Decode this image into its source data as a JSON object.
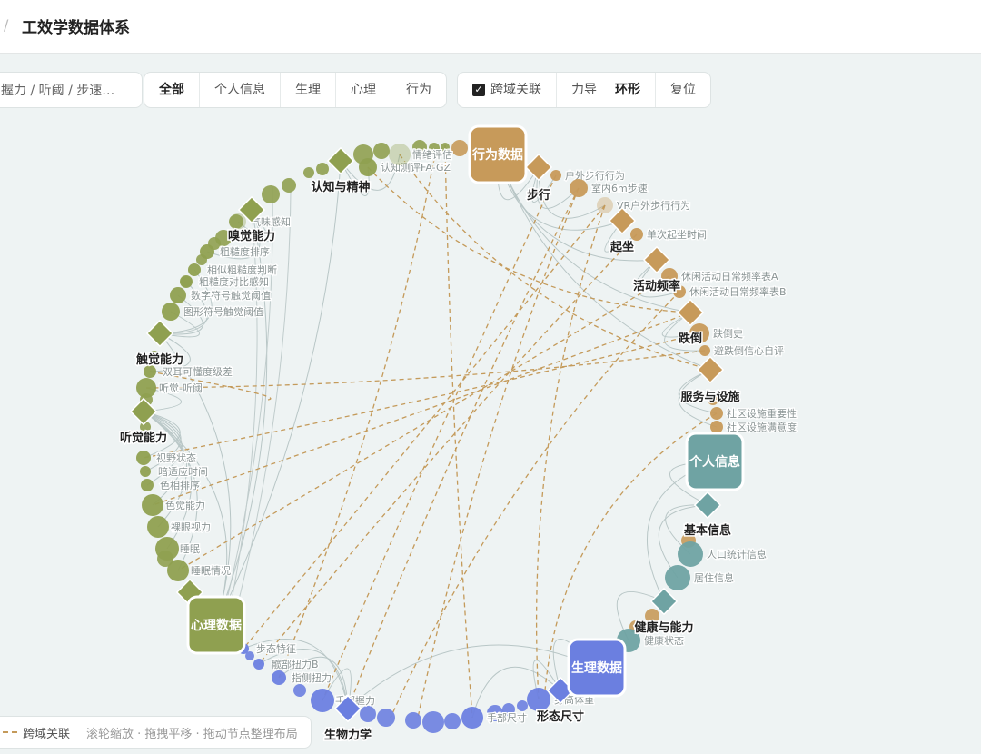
{
  "header": {
    "title": "工效学数据体系"
  },
  "search": {
    "placeholder": "握力 / 听阈 / 步速…"
  },
  "filters": [
    "全部",
    "个人信息",
    "生理",
    "心理",
    "行为"
  ],
  "controls": {
    "cross_link": "跨域关联",
    "layouts": [
      "力导",
      "环形"
    ],
    "reset": "复位"
  },
  "legend": {
    "cross_link": "跨域关联",
    "hint": "滚轮缩放 · 拖拽平移 · 拖动节点整理布局"
  },
  "graph": {
    "hubs": [
      "行为数据",
      "个人信息",
      "生理数据",
      "心理数据"
    ],
    "categories": [
      "步行",
      "起坐",
      "活动频率",
      "跌倒",
      "服务与设施",
      "基本信息",
      "健康与能力",
      "形态尺寸",
      "生物力学",
      "听觉能力",
      "触觉能力",
      "嗅觉能力",
      "认知与精神"
    ],
    "leaves": [
      "户外步行行为",
      "室内6m步速",
      "VR户外步行行为",
      "单次起坐时间",
      "休闲活动日常频率表A",
      "休闲活动日常频率表B",
      "跌倒史",
      "避跌倒信心自评",
      "社区设施重要性",
      "社区设施满意度",
      "人口统计信息",
      "居住信息",
      "健康状态",
      "身高体重",
      "手部尺寸",
      "步态特征",
      "髋部扭力B",
      "指侧扭力",
      "手部握力",
      "睡眠情况",
      "睡眠",
      "裸眼视力",
      "色觉能力",
      "色相排序",
      "暗适应时间",
      "视野状态",
      "听觉-听阈",
      "双耳可懂度级差",
      "图形符号触觉阈值",
      "数字符号触觉阈值",
      "粗糙度对比感知",
      "相似粗糙度判断",
      "粗糙度排序",
      "气味感知",
      "认知测评FA-GZ",
      "情绪评估"
    ]
  }
}
